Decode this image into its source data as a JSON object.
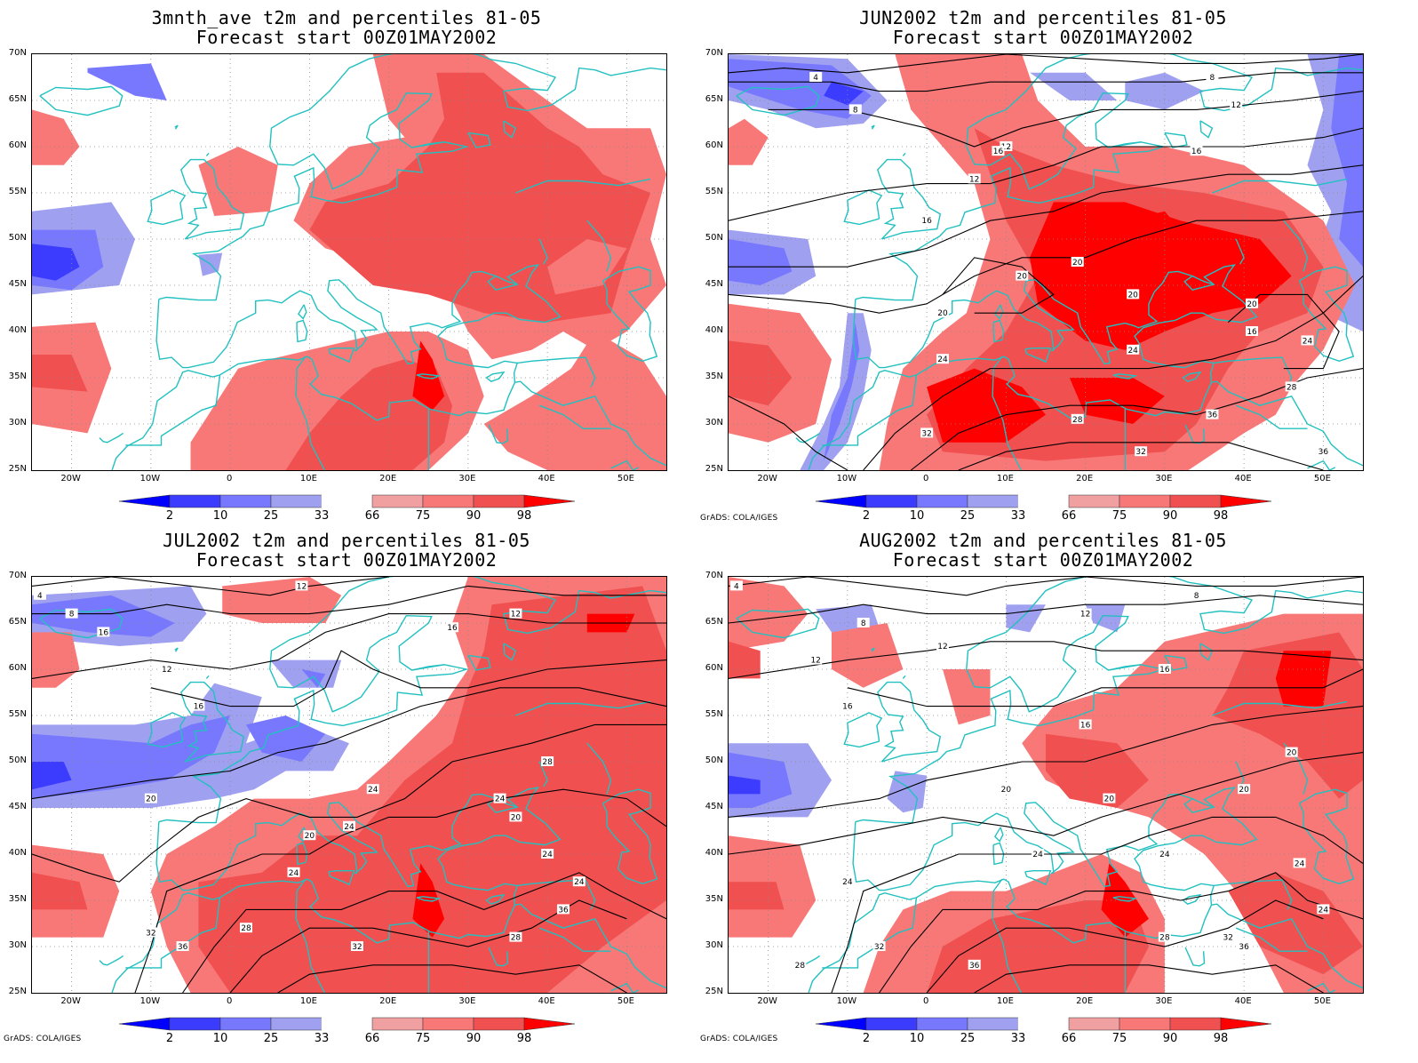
{
  "panels": [
    {
      "id": "p1",
      "title_line1": "3mnth_ave t2m and percentiles 81-05",
      "title_line2": "Forecast start 00Z01MAY2002",
      "credit": "",
      "has_contours": false
    },
    {
      "id": "p2",
      "title_line1": "JUN2002 t2m and percentiles 81-05",
      "title_line2": "Forecast start 00Z01MAY2002",
      "credit": "GrADS: COLA/IGES",
      "has_contours": true
    },
    {
      "id": "p3",
      "title_line1": "JUL2002 t2m and percentiles 81-05",
      "title_line2": "Forecast start 00Z01MAY2002",
      "credit": "GrADS: COLA/IGES",
      "has_contours": true
    },
    {
      "id": "p4",
      "title_line1": "AUG2002 t2m and percentiles 81-05",
      "title_line2": "Forecast start 00Z01MAY2002",
      "credit": "GrADS: COLA/IGES",
      "has_contours": true
    }
  ],
  "lat_labels": [
    "70N",
    "65N",
    "60N",
    "55N",
    "50N",
    "45N",
    "40N",
    "35N",
    "30N",
    "25N"
  ],
  "lon_labels": [
    "20W",
    "10W",
    "0",
    "10E",
    "20E",
    "30E",
    "40E",
    "50E"
  ],
  "legend": {
    "labels": [
      "2",
      "10",
      "25",
      "33",
      "66",
      "75",
      "90",
      "98"
    ],
    "colors": [
      "#0000ff",
      "#3c3cff",
      "#7878ff",
      "#a0a0f0",
      "#ffffff",
      "#f0a0a0",
      "#f87878",
      "#f05050",
      "#ff0000"
    ]
  },
  "map_colors": {
    "coast": "#22c0c0",
    "contour": "#000000"
  },
  "contour_labels": {
    "p2": [
      "4",
      "8",
      "8",
      "12",
      "12",
      "12",
      "16",
      "16",
      "16",
      "20",
      "20",
      "20",
      "20",
      "20",
      "24",
      "24",
      "24",
      "28",
      "28",
      "32",
      "32",
      "36",
      "36",
      "16"
    ],
    "p3": [
      "4",
      "8",
      "12",
      "12",
      "12",
      "16",
      "16",
      "16",
      "20",
      "20",
      "24",
      "24",
      "24",
      "24",
      "28",
      "28",
      "32",
      "32",
      "36",
      "36",
      "20",
      "24",
      "24",
      "28"
    ],
    "p4": [
      "4",
      "8",
      "8",
      "12",
      "12",
      "12",
      "16",
      "16",
      "16",
      "20",
      "20",
      "20",
      "24",
      "24",
      "24",
      "24",
      "28",
      "28",
      "32",
      "32",
      "36",
      "36",
      "20",
      "24"
    ]
  }
}
